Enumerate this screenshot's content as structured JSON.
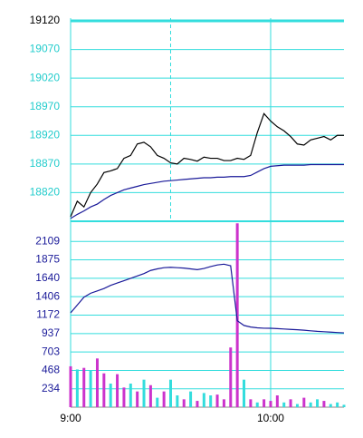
{
  "chart_data": [
    {
      "type": "line",
      "x": [
        0,
        2,
        4,
        6,
        8,
        10,
        12,
        14,
        16,
        18,
        20,
        22,
        24,
        26,
        28,
        30,
        32,
        34,
        36,
        38,
        40,
        42,
        44,
        46,
        48,
        50,
        52,
        54,
        56,
        58,
        60,
        62,
        64,
        66,
        68,
        70,
        72,
        74,
        76,
        78,
        80,
        82
      ],
      "xlim": [
        0,
        82
      ],
      "ylim": [
        18770,
        19120
      ],
      "yticks": [
        18820,
        18870,
        18920,
        18970,
        19020,
        19070,
        19120
      ],
      "grid": true,
      "series": [
        {
          "color": "#000000",
          "values": [
            18778,
            18805,
            18795,
            18820,
            18835,
            18855,
            18858,
            18862,
            18880,
            18885,
            18905,
            18908,
            18900,
            18885,
            18880,
            18872,
            18870,
            18880,
            18878,
            18875,
            18882,
            18880,
            18880,
            18876,
            18876,
            18880,
            18878,
            18885,
            18925,
            18958,
            18945,
            18935,
            18928,
            18918,
            18905,
            18903,
            18912,
            18915,
            18918,
            18912,
            18920,
            18920
          ]
        },
        {
          "color": "#1a1a99",
          "values": [
            18775,
            18782,
            18788,
            18795,
            18800,
            18808,
            18815,
            18820,
            18825,
            18828,
            18831,
            18834,
            18836,
            18838,
            18840,
            18841,
            18842,
            18843,
            18844,
            18845,
            18846,
            18846,
            18847,
            18847,
            18848,
            18848,
            18848,
            18850,
            18856,
            18862,
            18866,
            18867,
            18868,
            18868,
            18868,
            18868,
            18869,
            18869,
            18869,
            18869,
            18869,
            18869
          ]
        }
      ]
    },
    {
      "type": "combo",
      "x": [
        0,
        2,
        4,
        6,
        8,
        10,
        12,
        14,
        16,
        18,
        20,
        22,
        24,
        26,
        28,
        30,
        32,
        34,
        36,
        38,
        40,
        42,
        44,
        46,
        48,
        50,
        52,
        54,
        56,
        58,
        60,
        62,
        64,
        66,
        68,
        70,
        72,
        74,
        76,
        78,
        80,
        82
      ],
      "xlim": [
        0,
        82
      ],
      "xticks": [
        {
          "value": 0,
          "label": "9:00"
        },
        {
          "value": 60,
          "label": "10:00"
        }
      ],
      "ylim": [
        0,
        2343
      ],
      "yticks": [
        234,
        468,
        703,
        937,
        1172,
        1406,
        1640,
        1875,
        2109
      ],
      "grid": true,
      "series": [
        {
          "type": "bar",
          "values": [
            520,
            480,
            500,
            470,
            620,
            430,
            300,
            420,
            250,
            300,
            200,
            350,
            280,
            120,
            200,
            350,
            150,
            100,
            200,
            80,
            180,
            150,
            160,
            100,
            760,
            2340,
            350,
            100,
            60,
            100,
            80,
            150,
            60,
            100,
            40,
            120,
            60,
            100,
            80,
            40,
            60,
            30
          ],
          "colors": [
            "#cc33cc",
            "#33dddd",
            "#cc33cc",
            "#33dddd",
            "#cc33cc",
            "#cc33cc",
            "#33dddd",
            "#cc33cc",
            "#cc33cc",
            "#33dddd",
            "#cc33cc",
            "#33dddd",
            "#cc33cc",
            "#33dddd",
            "#cc33cc",
            "#33dddd",
            "#33dddd",
            "#cc33cc",
            "#33dddd",
            "#cc33cc",
            "#33dddd",
            "#33dddd",
            "#cc33cc",
            "#cc33cc",
            "#cc33cc",
            "#cc33cc",
            "#33dddd",
            "#cc33cc",
            "#33dddd",
            "#cc33cc",
            "#cc33cc",
            "#cc33cc",
            "#33dddd",
            "#cc33cc",
            "#33dddd",
            "#cc33cc",
            "#33dddd",
            "#33dddd",
            "#cc33cc",
            "#33dddd",
            "#33dddd",
            "#33dddd"
          ]
        },
        {
          "type": "line",
          "color": "#1a1a99",
          "values": [
            1200,
            1300,
            1400,
            1450,
            1480,
            1510,
            1550,
            1580,
            1610,
            1640,
            1670,
            1700,
            1740,
            1760,
            1775,
            1780,
            1775,
            1770,
            1760,
            1750,
            1765,
            1790,
            1810,
            1820,
            1800,
            1100,
            1040,
            1020,
            1010,
            1005,
            1004,
            1000,
            995,
            990,
            985,
            980,
            972,
            965,
            960,
            955,
            950,
            946
          ]
        }
      ]
    }
  ]
}
